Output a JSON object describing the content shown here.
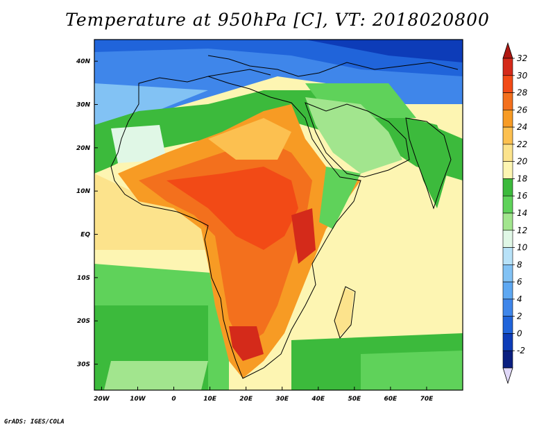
{
  "title": "Temperature at 950hPa [C], VT: 2018020800",
  "credit": "GrADS: IGES/COLA",
  "map": {
    "lon_range": [
      -22,
      80
    ],
    "lat_range": [
      -36,
      45
    ],
    "lat_ticks": [
      {
        "value": 40,
        "label": "40N"
      },
      {
        "value": 30,
        "label": "30N"
      },
      {
        "value": 20,
        "label": "20N"
      },
      {
        "value": 10,
        "label": "10N"
      },
      {
        "value": 0,
        "label": "EQ"
      },
      {
        "value": -10,
        "label": "10S"
      },
      {
        "value": -20,
        "label": "20S"
      },
      {
        "value": -30,
        "label": "30S"
      }
    ],
    "lon_ticks": [
      {
        "value": -20,
        "label": "20W"
      },
      {
        "value": -10,
        "label": "10W"
      },
      {
        "value": 0,
        "label": "0"
      },
      {
        "value": 10,
        "label": "10E"
      },
      {
        "value": 20,
        "label": "20E"
      },
      {
        "value": 30,
        "label": "30E"
      },
      {
        "value": 40,
        "label": "40E"
      },
      {
        "value": 50,
        "label": "50E"
      },
      {
        "value": 60,
        "label": "60E"
      },
      {
        "value": 70,
        "label": "70E"
      }
    ]
  },
  "colorbar": {
    "levels": [
      "32",
      "30",
      "28",
      "26",
      "24",
      "22",
      "20",
      "18",
      "16",
      "14",
      "12",
      "10",
      "8",
      "6",
      "4",
      "2",
      "0",
      "-2"
    ],
    "colors": [
      "#d42a1a",
      "#f24a16",
      "#f3701d",
      "#f79b24",
      "#fcc050",
      "#fce38c",
      "#fdf5b2",
      "#3cba3c",
      "#5fd25a",
      "#a2e58e",
      "#e0f7e6",
      "#b8e2f8",
      "#82c2f4",
      "#5ea8f2",
      "#3f86ea",
      "#2064da",
      "#0d3cb8",
      "#0a1f80"
    ],
    "top_arrow_color": "#b01812",
    "bottom_arrow_color": "#e0d8f8"
  }
}
